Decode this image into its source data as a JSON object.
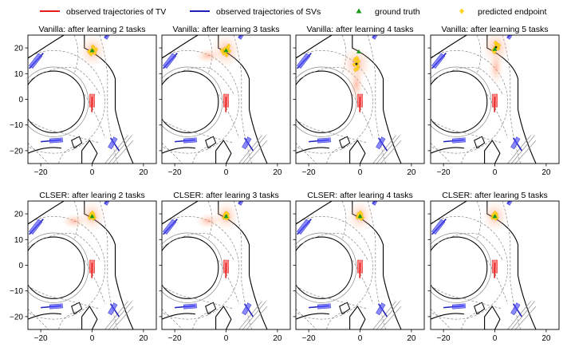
{
  "legend": {
    "entries": [
      {
        "label": "observed trajectories of TV",
        "color": "#e41a1c",
        "marker": "line"
      },
      {
        "label": "observed trajectories of SVs",
        "color": "#1f1fbf",
        "marker": "line"
      },
      {
        "label": "ground truth",
        "color": "#1a9a1a",
        "marker": "triangle"
      },
      {
        "label": "predicted endpoint",
        "color": "#ffd21f",
        "marker": "diamond"
      }
    ],
    "placement": "top"
  },
  "chart_data": [
    {
      "type": "scatter",
      "title": "Vanilla: after learning 2 tasks",
      "xlim": [
        -25,
        25
      ],
      "ylim": [
        -25,
        25
      ],
      "xticks": [
        -20,
        0,
        20
      ],
      "yticks": [
        -20,
        -10,
        0,
        10,
        20
      ],
      "ground_truth": [
        [
          0,
          19
        ]
      ],
      "predicted_endpoints": [
        [
          -0.5,
          19
        ],
        [
          0.3,
          20.5
        ],
        [
          1,
          18
        ],
        [
          -1.2,
          18.5
        ],
        [
          0.6,
          19.8
        ],
        [
          -0.4,
          17.6
        ],
        [
          1.5,
          19.4
        ],
        [
          0.1,
          18.8
        ]
      ]
    },
    {
      "type": "scatter",
      "title": "Vanilla: after learning 3 tasks",
      "xlim": [
        -25,
        25
      ],
      "ylim": [
        -25,
        25
      ],
      "xticks": [
        -20,
        0,
        20
      ],
      "yticks": [
        -20,
        -10,
        0,
        10,
        20
      ],
      "ground_truth": [
        [
          0,
          19
        ]
      ],
      "predicted_endpoints": [
        [
          -1,
          18
        ],
        [
          0.5,
          20
        ],
        [
          1.2,
          18.8
        ],
        [
          -0.5,
          19.6
        ],
        [
          0.2,
          17.2
        ],
        [
          -1.6,
          19
        ],
        [
          1,
          20.8
        ],
        [
          -0.3,
          18.4
        ]
      ]
    },
    {
      "type": "scatter",
      "title": "Vanilla: after learning 4 tasks",
      "xlim": [
        -25,
        25
      ],
      "ylim": [
        -25,
        25
      ],
      "xticks": [
        -20,
        0,
        20
      ],
      "yticks": [
        -20,
        -10,
        0,
        10,
        20
      ],
      "ground_truth": [
        [
          -0.5,
          18.5
        ]
      ],
      "predicted_endpoints": [
        [
          -1.5,
          14
        ],
        [
          -1,
          12
        ],
        [
          -2,
          15.5
        ],
        [
          -0.8,
          13
        ],
        [
          -1.8,
          11.5
        ],
        [
          -1.2,
          16
        ],
        [
          -2.3,
          13.5
        ],
        [
          -0.6,
          14.8
        ]
      ]
    },
    {
      "type": "scatter",
      "title": "Vanilla: after learning 5 tasks",
      "xlim": [
        -25,
        25
      ],
      "ylim": [
        -25,
        25
      ],
      "xticks": [
        -20,
        0,
        20
      ],
      "yticks": [
        -20,
        -10,
        0,
        10,
        20
      ],
      "ground_truth": [
        [
          0,
          19.5
        ]
      ],
      "predicted_endpoints": [
        [
          0,
          20
        ],
        [
          0.8,
          21.5
        ],
        [
          -0.6,
          19
        ],
        [
          1.3,
          19.8
        ],
        [
          0.3,
          22
        ],
        [
          -0.2,
          18.4
        ],
        [
          1.6,
          21
        ],
        [
          0.5,
          20.6
        ]
      ]
    },
    {
      "type": "scatter",
      "title": "CLSER: after learing 2 tasks",
      "xlim": [
        -25,
        25
      ],
      "ylim": [
        -25,
        25
      ],
      "xticks": [
        -20,
        0,
        20
      ],
      "yticks": [
        -20,
        -10,
        0,
        10,
        20
      ],
      "ground_truth": [
        [
          0,
          19
        ]
      ],
      "predicted_endpoints": [
        [
          -0.3,
          19
        ],
        [
          0.5,
          19.8
        ],
        [
          -0.9,
          18.4
        ],
        [
          0.9,
          18.6
        ],
        [
          0.1,
          20.4
        ],
        [
          -0.6,
          19.6
        ],
        [
          0.4,
          18.2
        ]
      ]
    },
    {
      "type": "scatter",
      "title": "CLSER: after learing 3 tasks",
      "xlim": [
        -25,
        25
      ],
      "ylim": [
        -25,
        25
      ],
      "xticks": [
        -20,
        0,
        20
      ],
      "yticks": [
        -20,
        -10,
        0,
        10,
        20
      ],
      "ground_truth": [
        [
          0,
          19
        ]
      ],
      "predicted_endpoints": [
        [
          -0.2,
          19.2
        ],
        [
          0.6,
          19.9
        ],
        [
          -0.8,
          18.5
        ],
        [
          0.8,
          18.7
        ],
        [
          0,
          20.3
        ],
        [
          -0.5,
          19.7
        ],
        [
          0.3,
          18.3
        ]
      ]
    },
    {
      "type": "scatter",
      "title": "CLSER: after learing 4 tasks",
      "xlim": [
        -25,
        25
      ],
      "ylim": [
        -25,
        25
      ],
      "xticks": [
        -20,
        0,
        20
      ],
      "yticks": [
        -20,
        -10,
        0,
        10,
        20
      ],
      "ground_truth": [
        [
          0,
          19
        ]
      ],
      "predicted_endpoints": [
        [
          -0.4,
          19.1
        ],
        [
          0.5,
          19.9
        ],
        [
          -1,
          18.6
        ],
        [
          0.9,
          18.5
        ],
        [
          0.1,
          20.5
        ],
        [
          -0.7,
          19.8
        ],
        [
          0.4,
          18.1
        ]
      ]
    },
    {
      "type": "scatter",
      "title": "CLSER: after learing 5 tasks",
      "xlim": [
        -25,
        25
      ],
      "ylim": [
        -25,
        25
      ],
      "xticks": [
        -20,
        0,
        20
      ],
      "yticks": [
        -20,
        -10,
        0,
        10,
        20
      ],
      "ground_truth": [
        [
          0,
          19
        ]
      ],
      "predicted_endpoints": [
        [
          -0.3,
          19
        ],
        [
          0.6,
          19.8
        ],
        [
          -0.9,
          18.5
        ],
        [
          0.8,
          18.6
        ],
        [
          0.1,
          20.4
        ],
        [
          -0.6,
          19.6
        ],
        [
          0.3,
          18.2
        ]
      ]
    }
  ]
}
